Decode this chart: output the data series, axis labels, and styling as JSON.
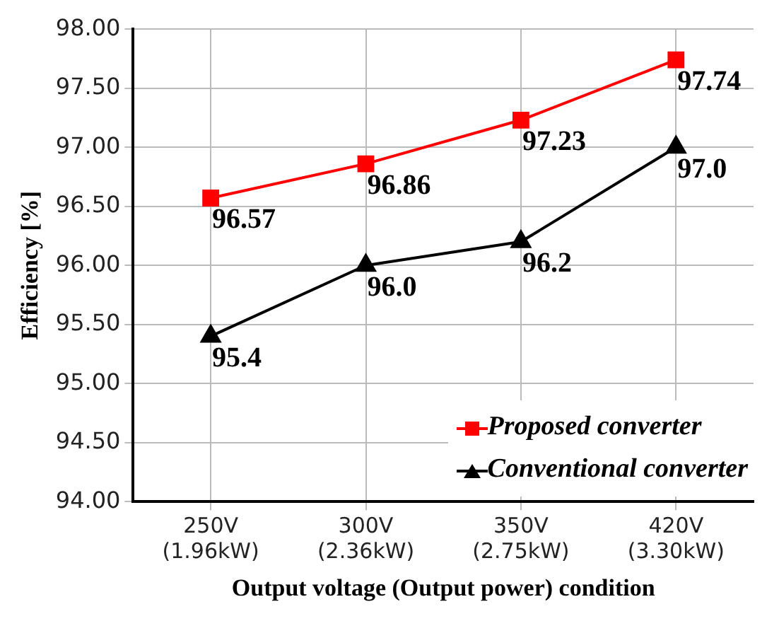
{
  "chart_data": {
    "type": "line",
    "xlabel": "Output voltage (Output power) condition",
    "ylabel": "Efficiency [%]",
    "categories": [
      "250V\n(1.96kW)",
      "300V\n(2.36kW)",
      "350V\n(2.75kW)",
      "420V\n(3.30kW)"
    ],
    "series": [
      {
        "name": "Proposed converter",
        "color": "#ff0000",
        "marker": "square",
        "values": [
          96.57,
          96.86,
          97.23,
          97.74
        ],
        "value_labels": [
          "96.57",
          "96.86",
          "97.23",
          "97.74"
        ]
      },
      {
        "name": "Conventional converter",
        "color": "#000000",
        "marker": "triangle",
        "values": [
          95.4,
          96.0,
          96.2,
          97.0
        ],
        "value_labels": [
          "95.4",
          "96.0",
          "96.2",
          "97.0"
        ]
      }
    ],
    "ylim": [
      94,
      98
    ],
    "yticks": [
      {
        "value": 94,
        "label": "94.00"
      },
      {
        "value": 94.5,
        "label": "94.50"
      },
      {
        "value": 95,
        "label": "95.00"
      },
      {
        "value": 95.5,
        "label": "95.50"
      },
      {
        "value": 96,
        "label": "96.00"
      },
      {
        "value": 96.5,
        "label": "96.50"
      },
      {
        "value": 97,
        "label": "97.00"
      },
      {
        "value": 97.5,
        "label": "97.50"
      },
      {
        "value": 98,
        "label": "98.00"
      }
    ],
    "grid": true,
    "legend": "bottom right"
  }
}
